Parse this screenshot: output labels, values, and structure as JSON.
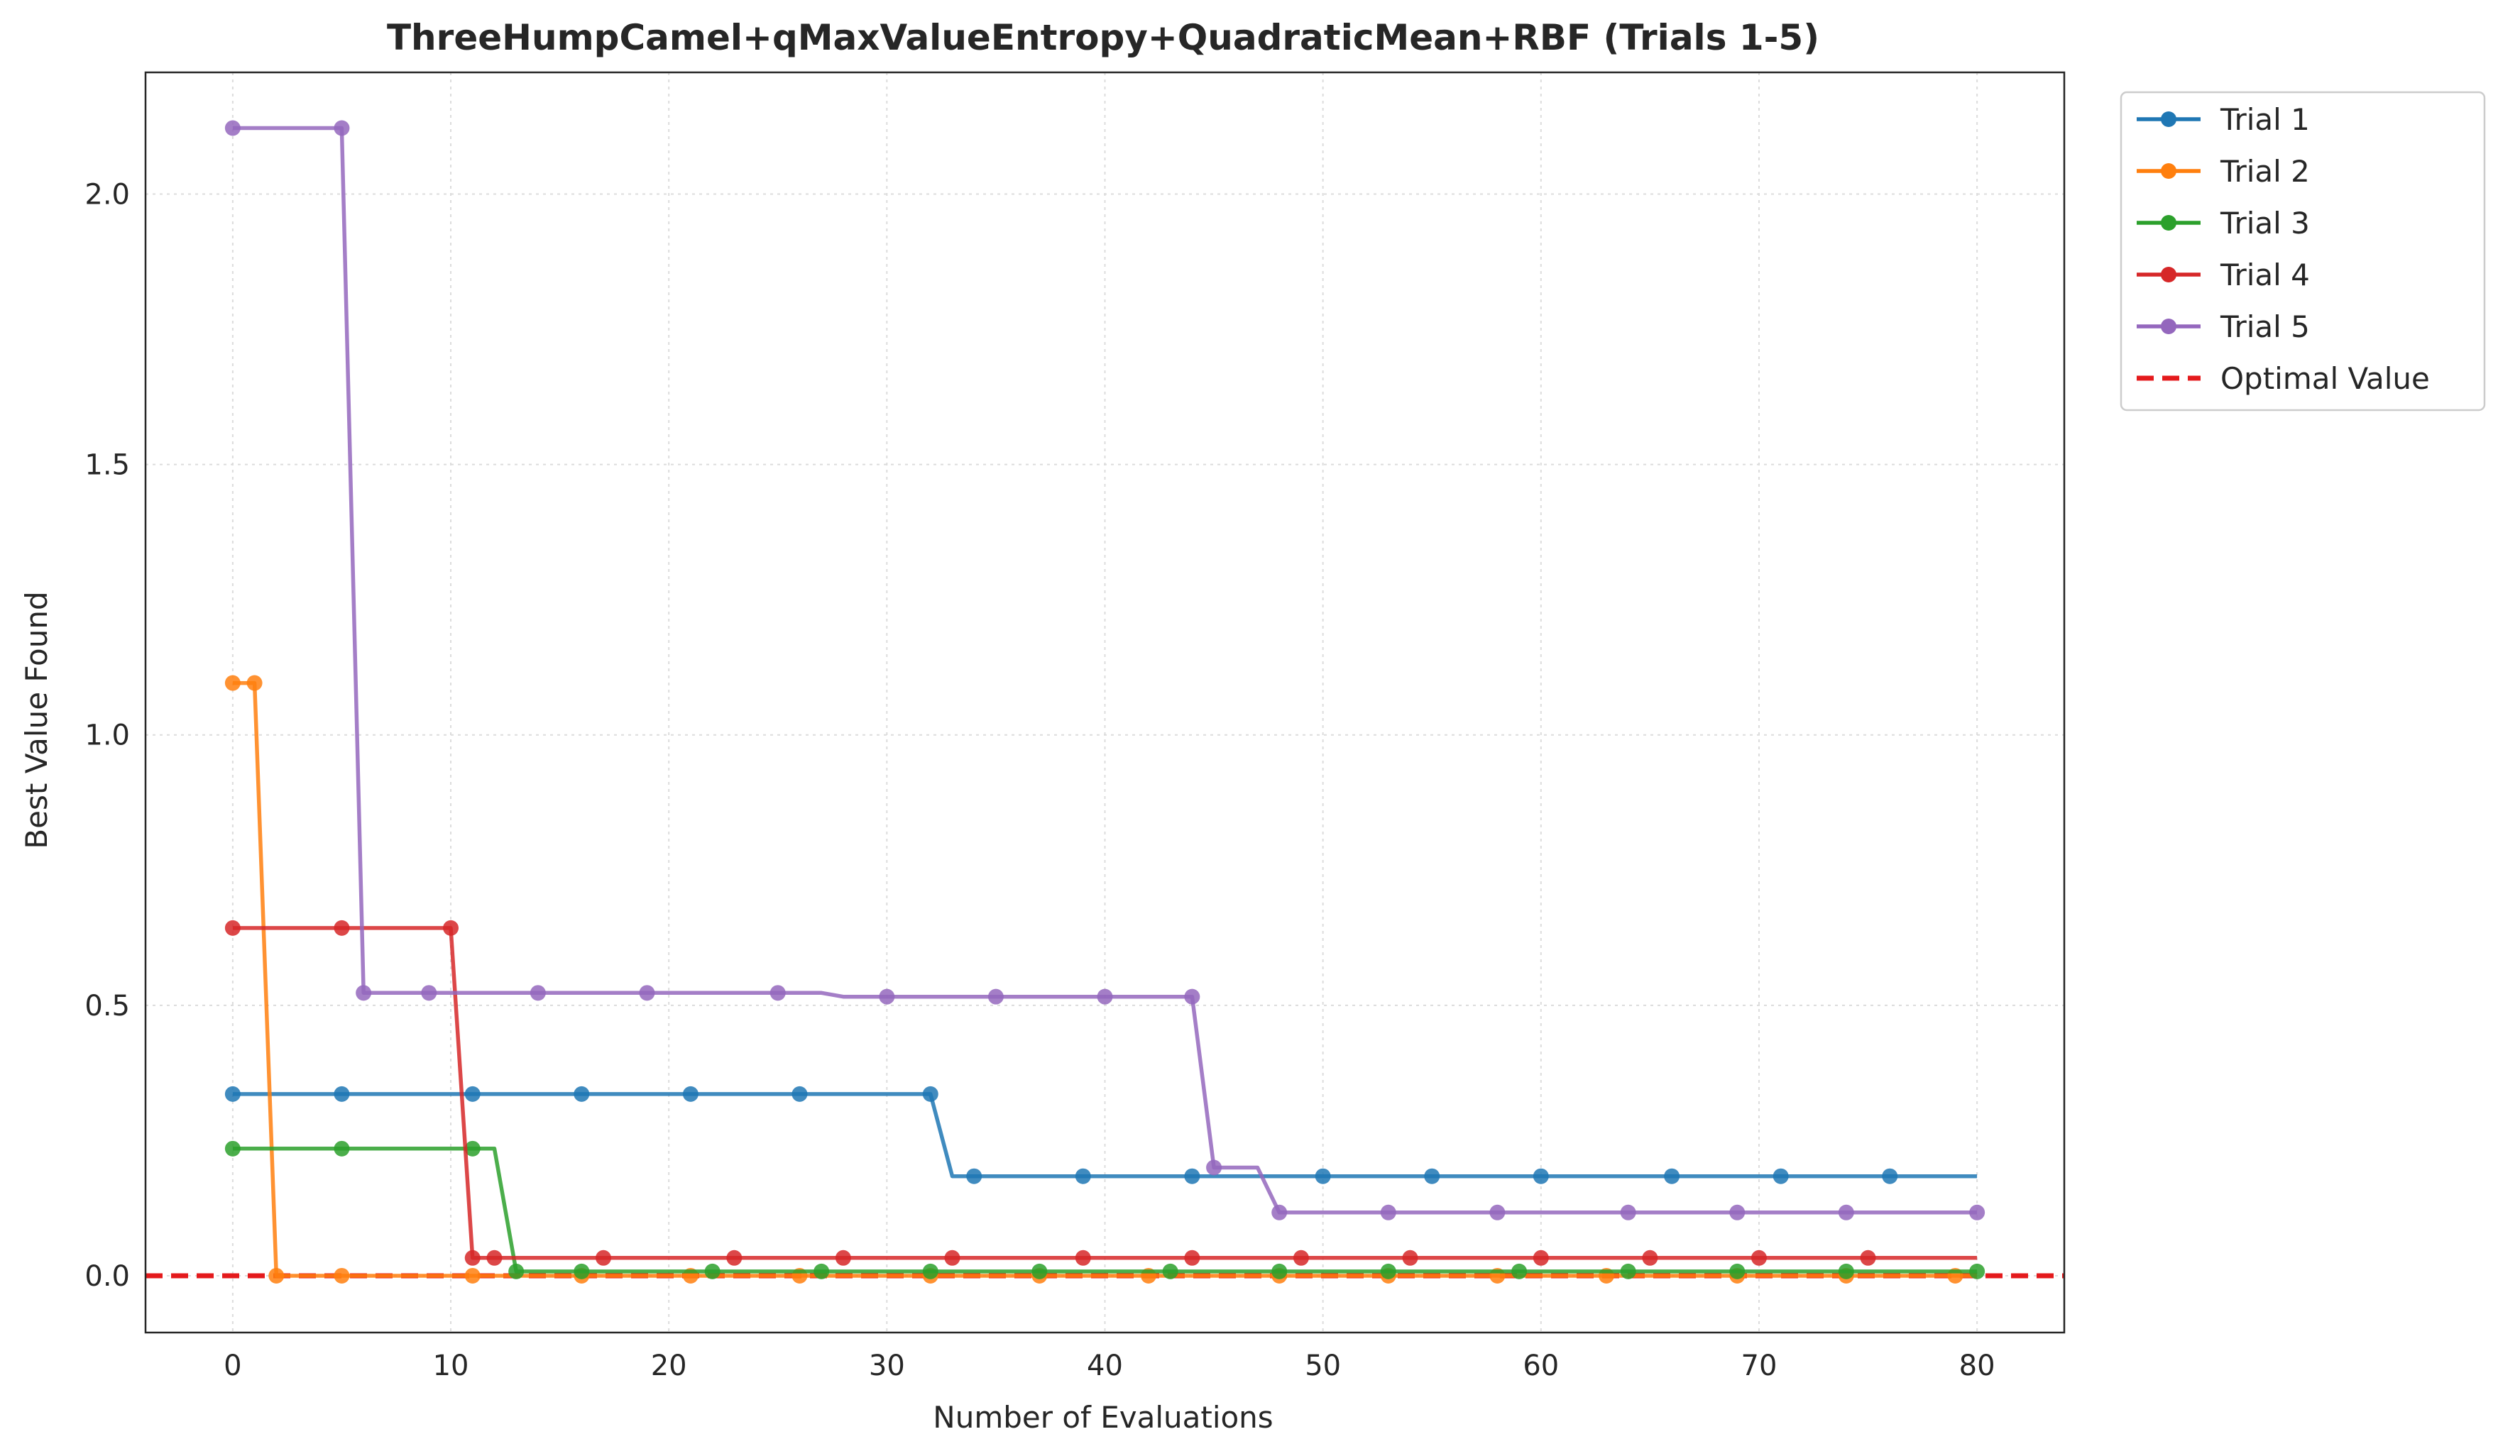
{
  "chart_data": {
    "type": "line",
    "title": "ThreeHumpCamel+qMaxValueEntropy+QuadraticMean+RBF (Trials 1-5)",
    "xlabel": "Number of Evaluations",
    "ylabel": "Best Value Found",
    "xlim": [
      -4,
      84
    ],
    "ylim": [
      -0.105,
      2.225
    ],
    "xticks": [
      0,
      10,
      20,
      30,
      40,
      50,
      60,
      70,
      80
    ],
    "yticks": [
      0.0,
      0.5,
      1.0,
      1.5,
      2.0
    ],
    "xtick_labels": [
      "0",
      "10",
      "20",
      "30",
      "40",
      "50",
      "60",
      "70",
      "80"
    ],
    "ytick_labels": [
      "0.0",
      "0.5",
      "1.0",
      "1.5",
      "2.0"
    ],
    "grid": true,
    "legend_position": "outside-top-right",
    "optimal_value": {
      "name": "Optimal Value",
      "y": 0.0,
      "color": "#e41a1c",
      "style": "dashed"
    },
    "series": [
      {
        "name": "Trial 1",
        "color": "#1f77b4",
        "x": [
          0,
          32,
          33,
          80
        ],
        "y": [
          0.336,
          0.336,
          0.184,
          0.184
        ],
        "marker_x": [
          0,
          5,
          11,
          16,
          21,
          26,
          32,
          34,
          39,
          44,
          50,
          55,
          60,
          66,
          71,
          76
        ]
      },
      {
        "name": "Trial 2",
        "color": "#ff7f0e",
        "x": [
          0,
          1,
          2,
          80
        ],
        "y": [
          1.096,
          1.096,
          0.0,
          0.0
        ],
        "marker_x": [
          0,
          1,
          2,
          5,
          11,
          16,
          21,
          26,
          32,
          37,
          42,
          48,
          53,
          58,
          63,
          69,
          74,
          79
        ]
      },
      {
        "name": "Trial 3",
        "color": "#2ca02c",
        "x": [
          0,
          12,
          13,
          80
        ],
        "y": [
          0.235,
          0.235,
          0.008,
          0.008
        ],
        "marker_x": [
          0,
          5,
          11,
          13,
          16,
          22,
          27,
          32,
          37,
          43,
          48,
          53,
          59,
          64,
          69,
          74,
          80
        ]
      },
      {
        "name": "Trial 4",
        "color": "#d62728",
        "x": [
          0,
          10,
          11,
          80
        ],
        "y": [
          0.643,
          0.643,
          0.033,
          0.033
        ],
        "marker_x": [
          0,
          5,
          10,
          11,
          12,
          17,
          23,
          28,
          33,
          39,
          44,
          49,
          54,
          60,
          65,
          70,
          75
        ]
      },
      {
        "name": "Trial 5",
        "color": "#9467bd",
        "x": [
          0,
          5,
          6,
          27,
          28,
          44,
          45,
          47,
          48,
          80
        ],
        "y": [
          2.122,
          2.122,
          0.523,
          0.523,
          0.516,
          0.516,
          0.2,
          0.2,
          0.117,
          0.117
        ],
        "marker_x": [
          0,
          5,
          6,
          9,
          14,
          19,
          25,
          30,
          35,
          40,
          44,
          45,
          48,
          53,
          58,
          64,
          69,
          74,
          80
        ]
      }
    ]
  }
}
